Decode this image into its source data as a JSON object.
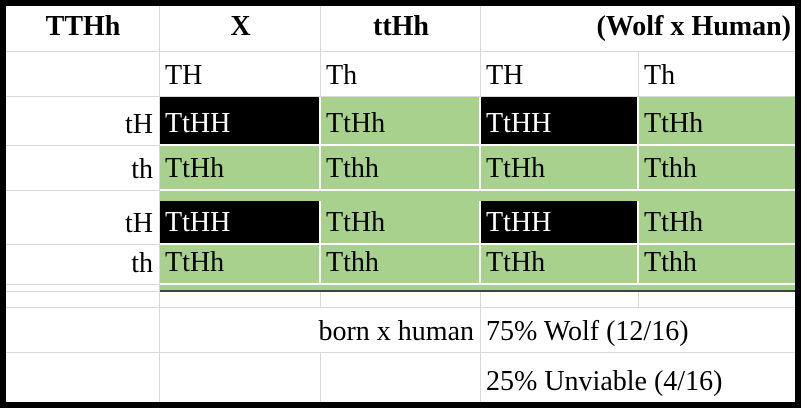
{
  "header": {
    "parent1": "TTHh",
    "cross": "X",
    "parent2": "ttHh",
    "note": "(Wolf x Human)"
  },
  "gametes": [
    "TH",
    "Th",
    "TH",
    "Th"
  ],
  "punnett_rows": [
    {
      "label": "tH",
      "cells": [
        "TtHH",
        "TtHh",
        "TtHH",
        "TtHh"
      ]
    },
    {
      "label": "th",
      "cells": [
        "TtHh",
        "Tthh",
        "TtHh",
        "Tthh"
      ]
    },
    {
      "label": "tH",
      "cells": [
        "TtHH",
        "TtHh",
        "TtHH",
        "TtHh"
      ]
    },
    {
      "label": "th",
      "cells": [
        "TtHh",
        "Tthh",
        "TtHh",
        "Tthh"
      ]
    }
  ],
  "summary": {
    "cross_label": "born x human",
    "wolf_result": "75% Wolf (12/16)",
    "unviable_result": "25% Unviable (4/16)"
  },
  "colors": {
    "viable_green": "#a9d18e",
    "lethal_black": "#000000",
    "gridline": "#d9d9d9"
  }
}
